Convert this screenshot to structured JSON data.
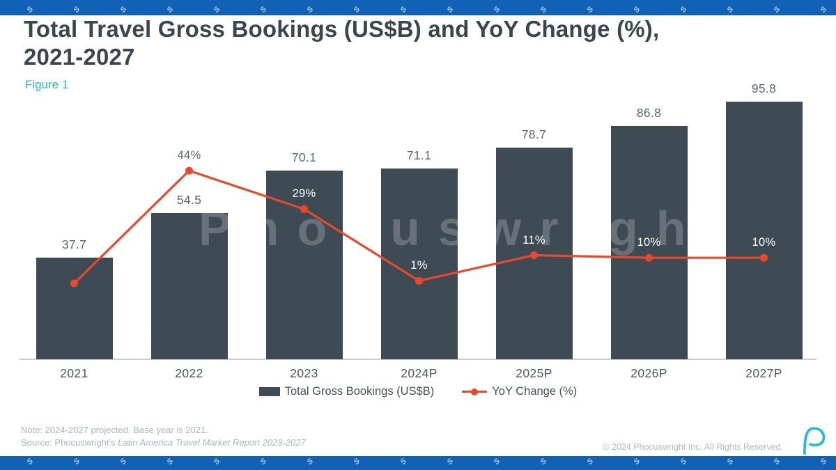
{
  "header": {
    "title_line1": "Total Travel Gross Bookings (US$B) and YoY Change (%),",
    "title_line2": "2021-2027",
    "figure_label": "Figure 1"
  },
  "chart_data": {
    "type": "bar",
    "title": "Total Travel Gross Bookings (US$B) and YoY Change (%), 2021-2027",
    "categories": [
      "2021",
      "2022",
      "2023",
      "2024P",
      "2025P",
      "2026P",
      "2027P"
    ],
    "series": [
      {
        "name": "Total Gross Bookings (US$B)",
        "type": "bar",
        "values": [
          37.7,
          54.5,
          70.1,
          71.1,
          78.7,
          86.8,
          95.8
        ],
        "color": "#3E4A54"
      },
      {
        "name": "YoY Change (%)",
        "type": "line",
        "values": [
          null,
          44,
          29,
          1,
          11,
          10,
          10
        ],
        "labels": [
          "",
          "44%",
          "29%",
          "1%",
          "11%",
          "10%",
          "10%"
        ],
        "color": "#E8492B"
      }
    ],
    "xlabel": "",
    "ylabel": "",
    "grid": false,
    "legend_position": "bottom",
    "value_label_format": "one-decimal"
  },
  "footer": {
    "note": "Note: 2024-2027 projected. Base year is 2021.",
    "source_prefix": "Source: Phocuswright’s ",
    "source_italic": "Latin America Travel Market Report 2023-2027",
    "copyright": "© 2024 Phocuswright Inc. All Rights Reserved."
  },
  "brand": {
    "watermark_text": "Phocuswright",
    "strip_glyph": "S",
    "brand_blue": "#1161B7",
    "accent_cyan": "#29B5D8"
  },
  "colors": {
    "bar_fill": "#3E4A54",
    "line_stroke": "#E8492B",
    "title_text": "#3B454F",
    "axis_line": "#C9CDD2",
    "value_label": "#5A646E",
    "pct_label_on_bar": "#FFFFFF",
    "pct_label_on_white": "#5A646E",
    "note_text": "#A9B6C6"
  }
}
